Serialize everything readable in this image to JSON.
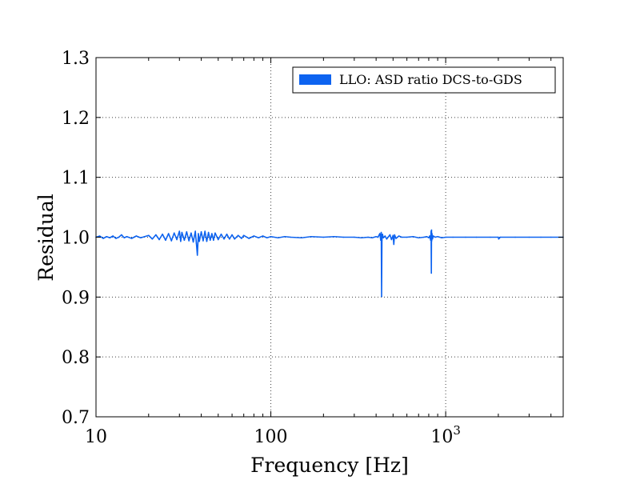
{
  "chart_data": {
    "type": "line",
    "xlabel": "Frequency [Hz]",
    "ylabel": "Residual",
    "xscale": "log",
    "xlim": [
      10,
      4700
    ],
    "ylim": [
      0.7,
      1.3
    ],
    "xticks": [
      {
        "value": 10,
        "label": "10",
        "exp": ""
      },
      {
        "value": 100,
        "label": "100",
        "exp": ""
      },
      {
        "value": 1000,
        "label": "10",
        "exp": "3"
      }
    ],
    "yticks": [
      {
        "value": 0.7,
        "label": "0.7"
      },
      {
        "value": 0.8,
        "label": "0.8"
      },
      {
        "value": 0.9,
        "label": "0.9"
      },
      {
        "value": 1.0,
        "label": "1.0"
      },
      {
        "value": 1.1,
        "label": "1.1"
      },
      {
        "value": 1.2,
        "label": "1.2"
      },
      {
        "value": 1.3,
        "label": "1.3"
      }
    ],
    "grid": true,
    "legend_position": "top-right",
    "series": [
      {
        "name": "LLO: ASD ratio DCS-to-GDS",
        "color": "#0d63f0",
        "x": [
          10,
          10.5,
          11,
          11.5,
          12,
          12.5,
          13,
          13.5,
          14,
          14.5,
          15,
          16,
          17,
          18,
          19,
          20,
          21,
          22,
          23,
          24,
          25,
          26,
          27,
          28,
          29,
          30,
          30.5,
          31,
          32,
          33,
          34,
          35,
          36,
          37,
          37.5,
          38,
          38.5,
          39,
          40,
          41,
          42,
          43,
          44,
          45,
          46,
          47,
          48,
          50,
          52,
          54,
          56,
          58,
          60,
          62,
          65,
          68,
          70,
          75,
          80,
          85,
          90,
          95,
          100,
          110,
          120,
          130,
          150,
          170,
          200,
          230,
          260,
          300,
          330,
          360,
          380,
          400,
          410,
          420,
          425,
          428,
          430,
          432,
          435,
          440,
          450,
          460,
          480,
          490,
          500,
          505,
          510,
          520,
          540,
          560,
          600,
          650,
          700,
          750,
          780,
          800,
          810,
          820,
          825,
          828,
          830,
          832,
          835,
          840,
          850,
          870,
          900,
          950,
          1000,
          1100,
          1300,
          1500,
          1800,
          2000,
          2010,
          2050,
          2500,
          3000,
          3500,
          4000,
          4700
        ],
        "y": [
          1.0,
          1.002,
          0.998,
          1.001,
          0.999,
          1.002,
          0.998,
          1.0,
          1.004,
          0.999,
          1.001,
          0.998,
          1.002,
          0.999,
          1.001,
          1.003,
          0.997,
          1.004,
          0.996,
          1.005,
          0.995,
          1.006,
          0.994,
          1.007,
          0.996,
          1.01,
          0.993,
          1.008,
          0.995,
          1.009,
          0.994,
          1.007,
          0.992,
          1.01,
          0.99,
          0.97,
          1.006,
          0.993,
          1.009,
          0.994,
          1.01,
          0.993,
          1.008,
          0.995,
          1.006,
          0.995,
          1.007,
          0.996,
          1.005,
          0.997,
          1.005,
          0.997,
          1.004,
          0.997,
          1.003,
          0.998,
          1.003,
          0.998,
          1.002,
          0.999,
          1.002,
          0.999,
          1.001,
          0.999,
          1.001,
          1.0,
          0.999,
          1.001,
          1.0,
          1.001,
          1.0,
          1.0,
          0.999,
          1.0,
          0.999,
          1.001,
          1.0,
          1.006,
          0.995,
          1.008,
          0.901,
          0.995,
          1.005,
          0.999,
          1.002,
          0.997,
          1.004,
          0.996,
          1.003,
          0.988,
          1.004,
          0.998,
          1.002,
          1.0,
          1.0,
          1.001,
          0.999,
          1.0,
          1.001,
          0.999,
          1.002,
          0.995,
          1.01,
          0.94,
          1.012,
          0.994,
          1.006,
          0.997,
          1.002,
          1.0,
          1.001,
          0.999,
          1.0,
          1.0,
          1.0,
          1.0,
          1.0,
          1.0,
          0.997,
          1.0,
          1.0,
          1.0,
          1.0,
          1.0,
          1.0
        ]
      }
    ]
  }
}
